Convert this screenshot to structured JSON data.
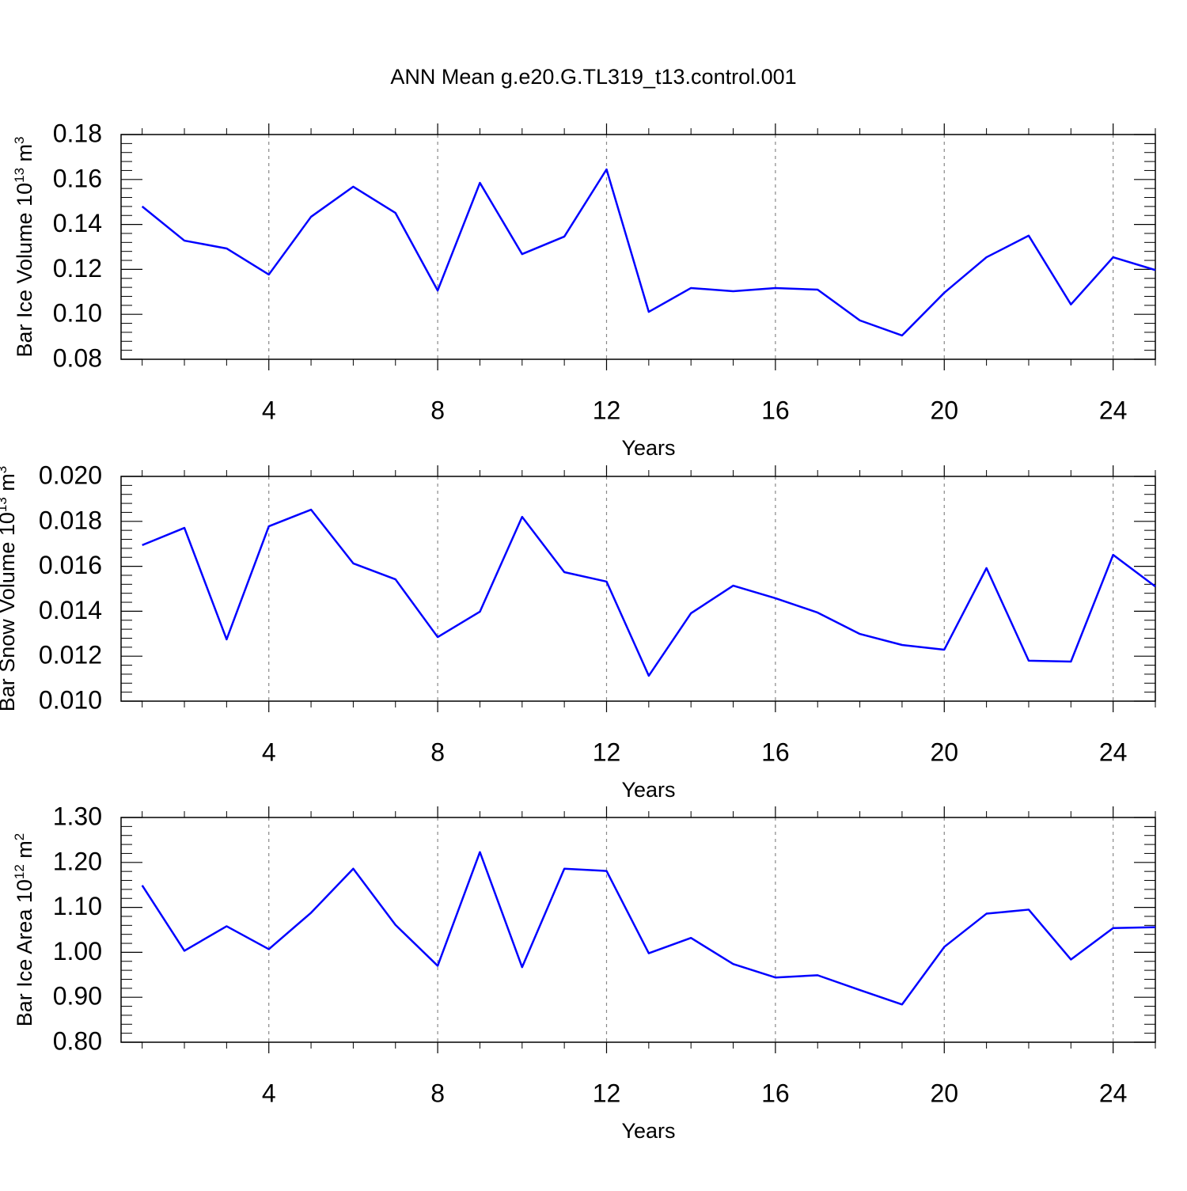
{
  "chart_data": [
    {
      "type": "line",
      "title": "ANN Mean g.e20.G.TL319_t13.control.001",
      "xlabel": "Years",
      "ylabel": {
        "text": "Bar Ice Volume 10",
        "exponent": "13",
        "unit": " m",
        "unit_exponent": "3"
      },
      "x": [
        1,
        2,
        3,
        4,
        5,
        6,
        7,
        8,
        9,
        10,
        11,
        12,
        13,
        14,
        15,
        16,
        17,
        18,
        19,
        20,
        21,
        22,
        23,
        24,
        25
      ],
      "series": [
        {
          "color": "#0000ff",
          "values": [
            0.148,
            0.1328,
            0.1293,
            0.1177,
            0.1434,
            0.1568,
            0.1451,
            0.1106,
            0.1585,
            0.1268,
            0.1346,
            0.1645,
            0.1011,
            0.1117,
            0.1103,
            0.1117,
            0.111,
            0.0973,
            0.0906,
            0.1096,
            0.1254,
            0.135,
            0.1044,
            0.1254,
            0.1197
          ]
        }
      ],
      "xlim": [
        0.5,
        25
      ],
      "xticks": [
        4,
        8,
        12,
        16,
        20,
        24
      ],
      "ylim": [
        0.08,
        0.18
      ],
      "yticks": [
        0.08,
        {
          "value": 0.1,
          "label": "0.10"
        },
        0.12,
        0.14,
        0.16,
        0.18
      ],
      "grid": "x-dashed"
    },
    {
      "type": "line",
      "xlabel": "Years",
      "ylabel": {
        "text": "Bar Snow Volume 10",
        "exponent": "13",
        "unit": " m",
        "unit_exponent": "3"
      },
      "x": [
        1,
        2,
        3,
        4,
        5,
        6,
        7,
        8,
        9,
        10,
        11,
        12,
        13,
        14,
        15,
        16,
        17,
        18,
        19,
        20,
        21,
        22,
        23,
        24,
        25
      ],
      "series": [
        {
          "color": "#0000ff",
          "values": [
            0.01694,
            0.01771,
            0.01275,
            0.01778,
            0.01852,
            0.01613,
            0.01542,
            0.01285,
            0.01398,
            0.0182,
            0.01574,
            0.01532,
            0.01113,
            0.01391,
            0.01514,
            0.01458,
            0.01394,
            0.01299,
            0.0125,
            0.01229,
            0.01592,
            0.0118,
            0.01176,
            0.01651,
            0.0151
          ]
        }
      ],
      "xlim": [
        0.5,
        25
      ],
      "xticks": [
        4,
        8,
        12,
        16,
        20,
        24
      ],
      "ylim": [
        0.01,
        0.02
      ],
      "yticks": [
        {
          "value": 0.01,
          "label": "0.010"
        },
        0.012,
        0.014,
        0.016,
        0.018,
        {
          "value": 0.02,
          "label": "0.020"
        }
      ],
      "grid": "x-dashed"
    },
    {
      "type": "line",
      "xlabel": "Years",
      "ylabel": {
        "text": "Bar Ice Area 10",
        "exponent": "12",
        "unit": " m",
        "unit_exponent": "2"
      },
      "x": [
        1,
        2,
        3,
        4,
        5,
        6,
        7,
        8,
        9,
        10,
        11,
        12,
        13,
        14,
        15,
        16,
        17,
        18,
        19,
        20,
        21,
        22,
        23,
        24,
        25
      ],
      "series": [
        {
          "color": "#0000ff",
          "values": [
            1.149,
            1.0035,
            1.058,
            1.007,
            1.088,
            1.186,
            1.061,
            0.97,
            1.223,
            0.967,
            1.186,
            1.181,
            0.998,
            1.032,
            0.974,
            0.944,
            0.949,
            0.916,
            0.884,
            1.012,
            1.086,
            1.095,
            0.984,
            1.054,
            1.056
          ]
        }
      ],
      "xlim": [
        0.5,
        25
      ],
      "xticks": [
        4,
        8,
        12,
        16,
        20,
        24
      ],
      "ylim": [
        0.8,
        1.3
      ],
      "yticks": [
        {
          "value": 0.8,
          "label": "0.80"
        },
        {
          "value": 0.9,
          "label": "0.90"
        },
        {
          "value": 1,
          "label": "1.00"
        },
        {
          "value": 1.1,
          "label": "1.10"
        },
        {
          "value": 1.2,
          "label": "1.20"
        },
        {
          "value": 1.3,
          "label": "1.30"
        }
      ],
      "grid": "x-dashed"
    }
  ]
}
